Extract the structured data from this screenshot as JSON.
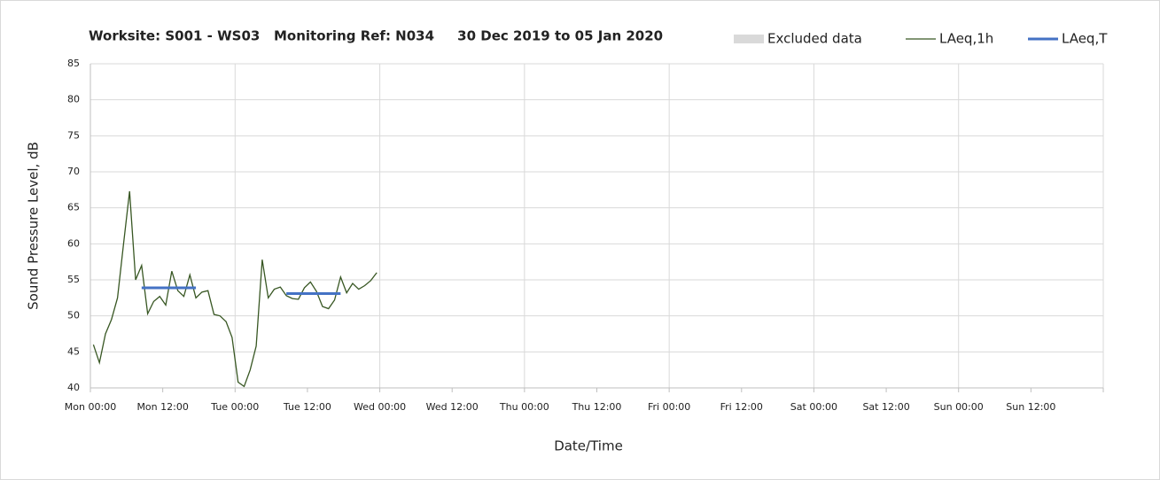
{
  "chart_data": {
    "type": "line",
    "title": "Worksite: S001 - WS03   Monitoring Ref: N034     30 Dec 2019 to 05 Jan 2020",
    "x_label": "Date/Time",
    "y_label": "Sound Pressure Level, dB",
    "x": [
      0.5,
      1.5,
      2.5,
      3.5,
      4.5,
      5.5,
      6.5,
      7.5,
      8.5,
      9.5,
      10.5,
      11.5,
      12.5,
      13.5,
      14.5,
      15.5,
      16.5,
      17.5,
      18.5,
      19.5,
      20.5,
      21.5,
      22.5,
      23.5,
      24.5,
      25.5,
      26.5,
      27.5,
      28.5,
      29.5,
      30.5,
      31.5,
      32.5,
      33.5,
      34.5,
      35.5,
      36.5,
      37.5,
      38.5,
      39.5,
      40.5,
      41.5,
      42.5,
      43.5,
      44.5,
      45.5,
      46.5,
      47.5
    ],
    "series": [
      {
        "name": "Excluded data",
        "color": "#d9d9d9"
      },
      {
        "name": "LAeq,1h",
        "color": "#385723",
        "values": [
          46,
          43.5,
          47.5,
          49.5,
          52.5,
          60,
          67.3,
          55,
          57,
          50.3,
          52,
          52.7,
          51.5,
          56.2,
          53.5,
          52.7,
          55.7,
          52.5,
          53.3,
          53.5,
          50.2,
          50,
          49.2,
          47,
          40.8,
          40.2,
          42.5,
          45.8,
          57.8,
          52.5,
          53.7,
          54,
          52.8,
          52.4,
          52.3,
          53.9,
          54.7,
          53.4,
          51.3,
          51,
          52.2,
          55.4,
          53.2,
          54.5,
          53.7,
          54.2,
          54.9,
          56
        ]
      },
      {
        "name": "LAeq,T",
        "color": "#4472c4",
        "x": [
          8.5,
          17.5,
          null,
          32.5,
          41.5
        ],
        "values": [
          53.9,
          53.9,
          null,
          53.1,
          53.1
        ]
      }
    ],
    "xlim": [
      0,
      168
    ],
    "xticks": [
      {
        "value": 0,
        "label": "Mon 00:00"
      },
      {
        "value": 12,
        "label": "Mon 12:00"
      },
      {
        "value": 24,
        "label": "Tue 00:00"
      },
      {
        "value": 36,
        "label": "Tue 12:00"
      },
      {
        "value": 48,
        "label": "Wed 00:00"
      },
      {
        "value": 60,
        "label": "Wed 12:00"
      },
      {
        "value": 72,
        "label": "Thu 00:00"
      },
      {
        "value": 84,
        "label": "Thu 12:00"
      },
      {
        "value": 96,
        "label": "Fri 00:00"
      },
      {
        "value": 108,
        "label": "Fri 12:00"
      },
      {
        "value": 120,
        "label": "Sat 00:00"
      },
      {
        "value": 132,
        "label": "Sat 12:00"
      },
      {
        "value": 144,
        "label": "Sun 00:00"
      },
      {
        "value": 156,
        "label": "Sun 12:00"
      }
    ],
    "x_gridlines": [
      24,
      48,
      72,
      96,
      120,
      144,
      168
    ],
    "ylim": [
      40,
      85
    ],
    "yticks": [
      40,
      45,
      50,
      55,
      60,
      65,
      70,
      75,
      80,
      85
    ],
    "grid": true
  }
}
